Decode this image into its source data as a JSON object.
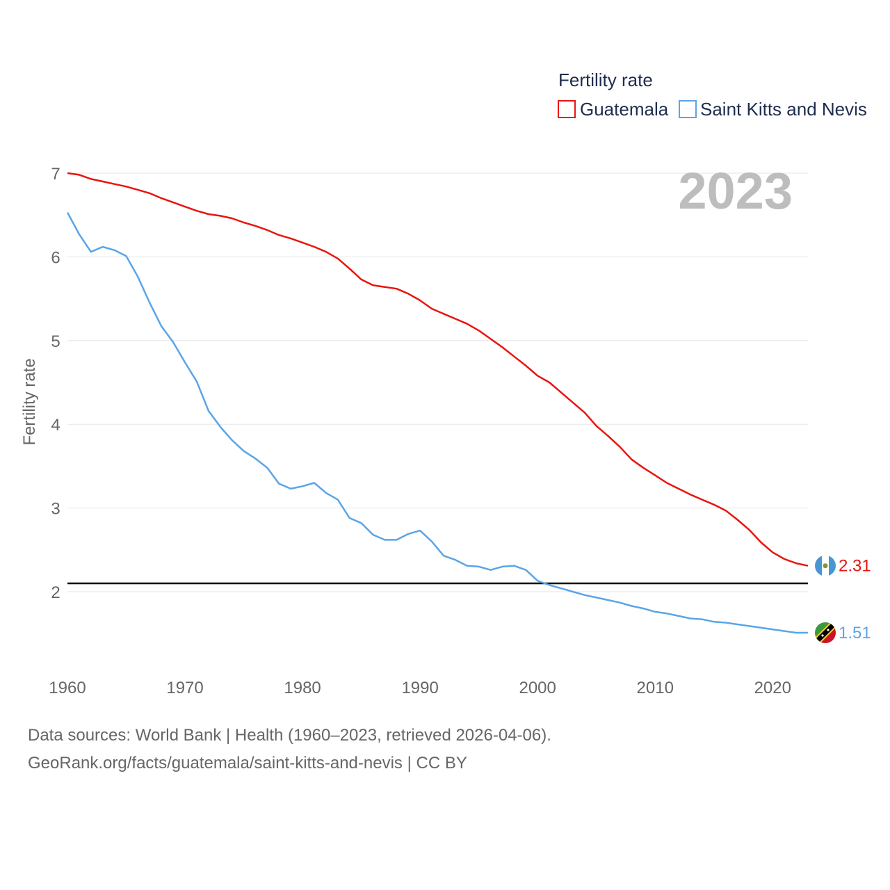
{
  "chart_data": {
    "type": "line",
    "title": "Fertility rate",
    "ylabel": "Fertility rate",
    "xlabel": "",
    "year_label": "2023",
    "xlim": [
      1960,
      2023
    ],
    "ylim": [
      1.2,
      7.0
    ],
    "x_ticks": [
      1960,
      1970,
      1980,
      1990,
      2000,
      2010,
      2020
    ],
    "y_ticks": [
      2,
      3,
      4,
      5,
      6,
      7
    ],
    "reference_line": 2.1,
    "legend_position": "top-right",
    "series": [
      {
        "name": "Guatemala",
        "color": "#e8150e",
        "end_label": "2.31",
        "flag": "guatemala-flag",
        "x": [
          1960,
          1961,
          1962,
          1963,
          1964,
          1965,
          1966,
          1967,
          1968,
          1969,
          1970,
          1971,
          1972,
          1973,
          1974,
          1975,
          1976,
          1977,
          1978,
          1979,
          1980,
          1981,
          1982,
          1983,
          1984,
          1985,
          1986,
          1987,
          1988,
          1989,
          1990,
          1991,
          1992,
          1993,
          1994,
          1995,
          1996,
          1997,
          1998,
          1999,
          2000,
          2001,
          2002,
          2003,
          2004,
          2005,
          2006,
          2007,
          2008,
          2009,
          2010,
          2011,
          2012,
          2013,
          2014,
          2015,
          2016,
          2017,
          2018,
          2019,
          2020,
          2021,
          2022,
          2023
        ],
        "values": [
          7.0,
          6.98,
          6.93,
          6.9,
          6.87,
          6.84,
          6.8,
          6.76,
          6.7,
          6.65,
          6.6,
          6.55,
          6.51,
          6.49,
          6.46,
          6.41,
          6.37,
          6.32,
          6.26,
          6.22,
          6.17,
          6.12,
          6.06,
          5.98,
          5.86,
          5.73,
          5.66,
          5.64,
          5.62,
          5.56,
          5.48,
          5.38,
          5.32,
          5.26,
          5.2,
          5.12,
          5.02,
          4.92,
          4.81,
          4.7,
          4.58,
          4.5,
          4.38,
          4.26,
          4.14,
          3.98,
          3.86,
          3.73,
          3.58,
          3.48,
          3.39,
          3.3,
          3.23,
          3.16,
          3.1,
          3.04,
          2.97,
          2.86,
          2.74,
          2.59,
          2.47,
          2.39,
          2.34,
          2.31
        ]
      },
      {
        "name": "Saint Kitts and Nevis",
        "color": "#5aa5e8",
        "end_label": "1.51",
        "flag": "saint-kitts-and-nevis-flag",
        "x": [
          1960,
          1961,
          1962,
          1963,
          1964,
          1965,
          1966,
          1967,
          1968,
          1969,
          1970,
          1971,
          1972,
          1973,
          1974,
          1975,
          1976,
          1977,
          1978,
          1979,
          1980,
          1981,
          1982,
          1983,
          1984,
          1985,
          1986,
          1987,
          1988,
          1989,
          1990,
          1991,
          1992,
          1993,
          1994,
          1995,
          1996,
          1997,
          1998,
          1999,
          2000,
          2001,
          2002,
          2003,
          2004,
          2005,
          2006,
          2007,
          2008,
          2009,
          2010,
          2011,
          2012,
          2013,
          2014,
          2015,
          2016,
          2017,
          2018,
          2019,
          2020,
          2021,
          2022,
          2023
        ],
        "values": [
          6.53,
          6.27,
          6.06,
          6.12,
          6.08,
          6.01,
          5.76,
          5.45,
          5.17,
          4.98,
          4.74,
          4.51,
          4.16,
          3.97,
          3.81,
          3.68,
          3.59,
          3.48,
          3.29,
          3.23,
          3.26,
          3.3,
          3.18,
          3.1,
          2.88,
          2.82,
          2.68,
          2.62,
          2.62,
          2.69,
          2.73,
          2.6,
          2.43,
          2.38,
          2.31,
          2.3,
          2.26,
          2.3,
          2.31,
          2.26,
          2.13,
          2.08,
          2.04,
          2.0,
          1.96,
          1.93,
          1.9,
          1.87,
          1.83,
          1.8,
          1.76,
          1.74,
          1.71,
          1.68,
          1.67,
          1.64,
          1.63,
          1.61,
          1.59,
          1.57,
          1.55,
          1.53,
          1.51,
          1.51
        ]
      }
    ]
  },
  "footer": {
    "sources": "Data sources: World Bank | Health (1960–2023, retrieved 2026-04-06).",
    "url": "GeoRank.org/facts/guatemala/saint-kitts-and-nevis | CC BY"
  }
}
